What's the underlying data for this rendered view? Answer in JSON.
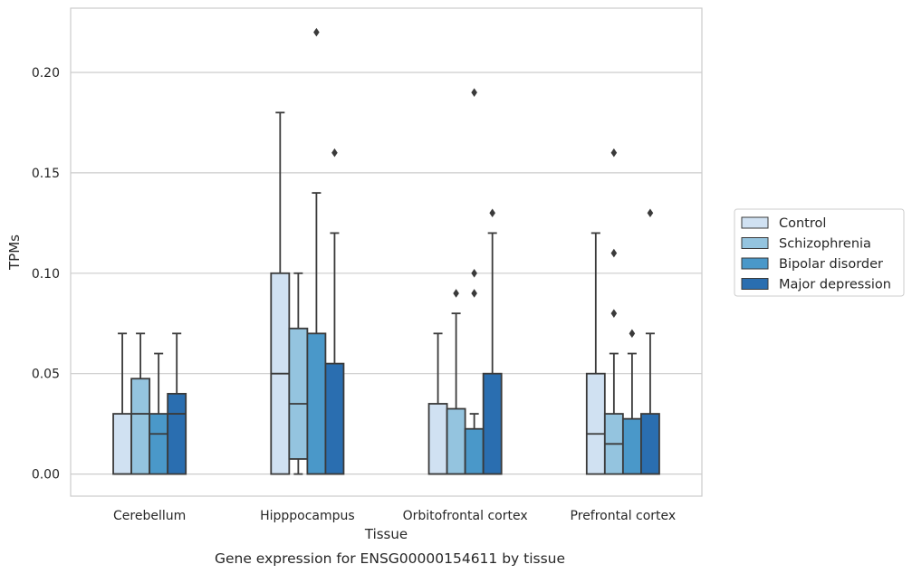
{
  "chart_data": {
    "type": "box",
    "xlabel": "Tissue",
    "ylabel": "TPMs",
    "caption": "Gene expression for ENSG00000154611 by tissue",
    "ylim": [
      -0.011,
      0.232
    ],
    "yticks": [
      "0.00",
      "0.05",
      "0.10",
      "0.15",
      "0.20"
    ],
    "grid": true,
    "legend_placement": "right",
    "categories": [
      "Cerebellum",
      "Hipppocampus",
      "Orbitofrontal cortex",
      "Prefrontal cortex"
    ],
    "series": [
      {
        "name": "Control",
        "color": "#d0e1f2",
        "boxes": [
          {
            "whislo": 0.0,
            "q1": 0.0,
            "med": 0.0,
            "q3": 0.03,
            "whishi": 0.07,
            "fliers": []
          },
          {
            "whislo": 0.0,
            "q1": 0.0,
            "med": 0.05,
            "q3": 0.1,
            "whishi": 0.18,
            "fliers": []
          },
          {
            "whislo": 0.0,
            "q1": 0.0,
            "med": 0.0,
            "q3": 0.035,
            "whishi": 0.07,
            "fliers": []
          },
          {
            "whislo": 0.0,
            "q1": 0.0,
            "med": 0.02,
            "q3": 0.05,
            "whishi": 0.12,
            "fliers": []
          }
        ]
      },
      {
        "name": "Schizophrenia",
        "color": "#94c4df",
        "boxes": [
          {
            "whislo": 0.0,
            "q1": 0.0,
            "med": 0.03,
            "q3": 0.0475,
            "whishi": 0.07,
            "fliers": []
          },
          {
            "whislo": 0.0,
            "q1": 0.0075,
            "med": 0.035,
            "q3": 0.0725,
            "whishi": 0.1,
            "fliers": []
          },
          {
            "whislo": 0.0,
            "q1": 0.0,
            "med": 0.0,
            "q3": 0.0325,
            "whishi": 0.08,
            "fliers": [
              0.09
            ]
          },
          {
            "whislo": 0.0,
            "q1": 0.0,
            "med": 0.015,
            "q3": 0.03,
            "whishi": 0.06,
            "fliers": [
              0.08,
              0.11,
              0.16
            ]
          }
        ]
      },
      {
        "name": "Bipolar disorder",
        "color": "#4a98c9",
        "boxes": [
          {
            "whislo": 0.0,
            "q1": 0.0,
            "med": 0.02,
            "q3": 0.03,
            "whishi": 0.06,
            "fliers": []
          },
          {
            "whislo": 0.0,
            "q1": 0.0,
            "med": 0.0,
            "q3": 0.07,
            "whishi": 0.14,
            "fliers": [
              0.22
            ]
          },
          {
            "whislo": 0.0,
            "q1": 0.0,
            "med": 0.0,
            "q3": 0.0225,
            "whishi": 0.03,
            "fliers": [
              0.09,
              0.1,
              0.19
            ]
          },
          {
            "whislo": 0.0,
            "q1": 0.0,
            "med": 0.0,
            "q3": 0.0275,
            "whishi": 0.06,
            "fliers": [
              0.07
            ]
          }
        ]
      },
      {
        "name": "Major depression",
        "color": "#2a6eb0",
        "boxes": [
          {
            "whislo": 0.0,
            "q1": 0.0,
            "med": 0.03,
            "q3": 0.04,
            "whishi": 0.07,
            "fliers": []
          },
          {
            "whislo": 0.0,
            "q1": 0.0,
            "med": 0.0,
            "q3": 0.055,
            "whishi": 0.12,
            "fliers": [
              0.16
            ]
          },
          {
            "whislo": 0.0,
            "q1": 0.0,
            "med": 0.0,
            "q3": 0.05,
            "whishi": 0.12,
            "fliers": [
              0.13
            ]
          },
          {
            "whislo": 0.0,
            "q1": 0.0,
            "med": 0.0,
            "q3": 0.03,
            "whishi": 0.07,
            "fliers": [
              0.13
            ]
          }
        ]
      }
    ]
  }
}
